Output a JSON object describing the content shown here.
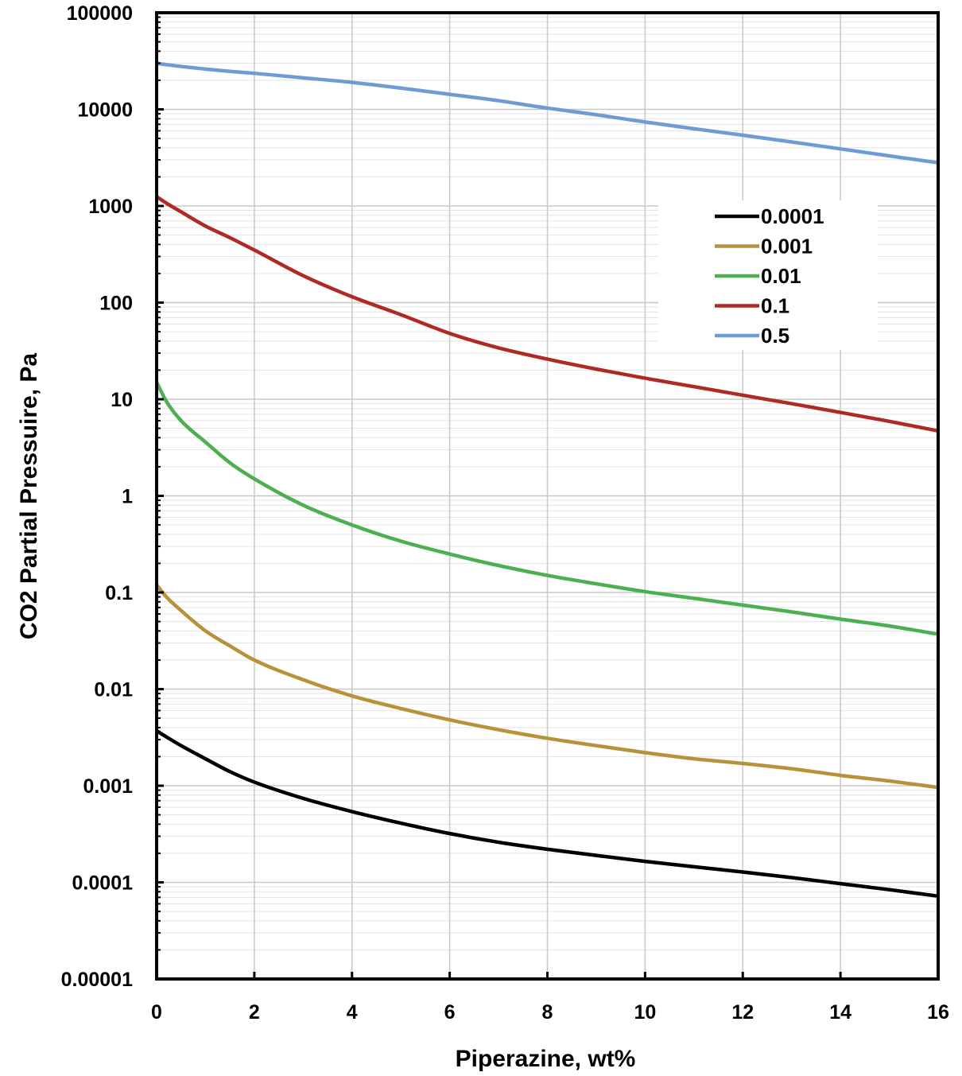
{
  "chart_data": {
    "type": "line",
    "title": "",
    "xlabel": "Piperazine, wt%",
    "ylabel": "CO2 Partial Pressuire, Pa",
    "xlim": [
      0,
      16
    ],
    "ylim": [
      1e-05,
      100000
    ],
    "yscale": "log",
    "grid": true,
    "legend_position": "top-right",
    "x_ticks": [
      "0",
      "2",
      "4",
      "6",
      "8",
      "10",
      "12",
      "14",
      "16"
    ],
    "y_ticks": [
      "0.00001",
      "0.0001",
      "0.001",
      "0.01",
      "0.1",
      "1",
      "10",
      "100",
      "1000",
      "10000",
      "100000"
    ],
    "x": [
      0,
      0.2,
      0.5,
      1,
      1.5,
      2,
      3,
      4,
      5,
      6,
      7,
      8,
      9,
      10,
      11,
      12,
      13,
      14,
      15,
      16
    ],
    "series": [
      {
        "name": "0.0001",
        "color": "#000000",
        "values": [
          0.0037,
          0.0032,
          0.0026,
          0.0019,
          0.0014,
          0.00109,
          0.00074,
          0.00054,
          0.00041,
          0.00032,
          0.00026,
          0.00022,
          0.00019,
          0.000165,
          0.000145,
          0.000128,
          0.000112,
          9.7e-05,
          8.4e-05,
          7.2e-05
        ]
      },
      {
        "name": "0.001",
        "color": "#B8923A",
        "values": [
          0.12,
          0.09,
          0.065,
          0.04,
          0.028,
          0.02,
          0.0125,
          0.0085,
          0.0063,
          0.0048,
          0.0038,
          0.0031,
          0.0026,
          0.0022,
          0.0019,
          0.0017,
          0.0015,
          0.00128,
          0.00112,
          0.00096
        ]
      },
      {
        "name": "0.01",
        "color": "#4CAF50",
        "values": [
          15,
          9.5,
          6,
          3.6,
          2.2,
          1.5,
          0.8,
          0.5,
          0.34,
          0.25,
          0.19,
          0.15,
          0.123,
          0.102,
          0.087,
          0.074,
          0.063,
          0.053,
          0.045,
          0.037
        ]
      },
      {
        "name": "0.1",
        "color": "#B02A25",
        "values": [
          1250,
          1070,
          870,
          620,
          470,
          350,
          190,
          115,
          75,
          48,
          34,
          26,
          20.5,
          16.5,
          13.5,
          11,
          9,
          7.3,
          5.9,
          4.7
        ]
      },
      {
        "name": "0.5",
        "color": "#6E9BD3",
        "values": [
          30000,
          29000,
          27800,
          26100,
          24700,
          23600,
          21200,
          19000,
          16600,
          14300,
          12300,
          10300,
          8800,
          7400,
          6300,
          5400,
          4600,
          3900,
          3300,
          2800
        ]
      }
    ]
  }
}
